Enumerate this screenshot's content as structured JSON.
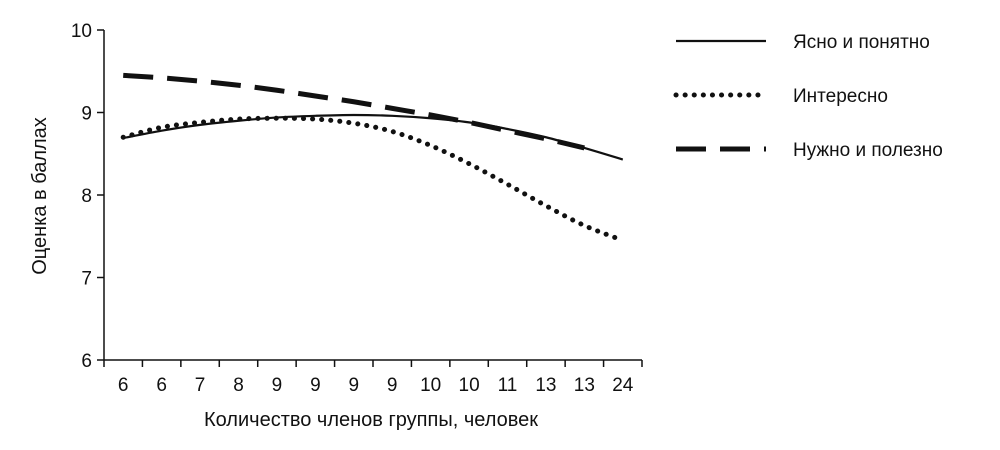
{
  "chart_data": {
    "type": "line",
    "title": "",
    "xlabel": "Количество членов группы, человек",
    "ylabel": "Оценка в баллах",
    "categories": [
      "6",
      "6",
      "7",
      "8",
      "9",
      "9",
      "9",
      "9",
      "10",
      "10",
      "11",
      "13",
      "13",
      "24"
    ],
    "ylim": [
      6,
      10
    ],
    "yticks": [
      "6",
      "7",
      "8",
      "9",
      "10"
    ],
    "legend_position": "right",
    "series": [
      {
        "name": "Ясно и понятно",
        "style": "solid",
        "color": "#111111",
        "values": [
          8.69,
          8.78,
          8.85,
          8.9,
          8.94,
          8.96,
          8.97,
          8.96,
          8.93,
          8.88,
          8.8,
          8.7,
          8.57,
          8.43
        ]
      },
      {
        "name": "Интересно",
        "style": "dotted",
        "color": "#111111",
        "values": [
          8.7,
          8.82,
          8.88,
          8.92,
          8.93,
          8.92,
          8.87,
          8.77,
          8.6,
          8.38,
          8.13,
          7.87,
          7.63,
          7.45
        ]
      },
      {
        "name": "Нужно и полезно",
        "style": "dashed",
        "color": "#111111",
        "values": [
          9.45,
          9.42,
          9.38,
          9.33,
          9.27,
          9.2,
          9.13,
          9.05,
          8.97,
          8.88,
          8.78,
          8.68,
          8.57,
          null
        ]
      }
    ]
  }
}
